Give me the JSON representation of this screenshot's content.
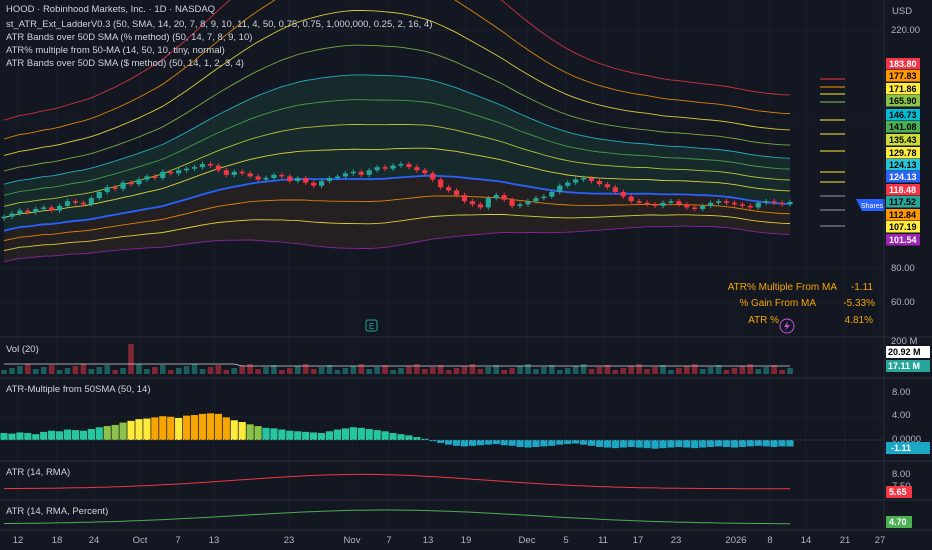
{
  "header": {
    "title": "HOOD · Robinhood Markets, Inc. · 1D · NASDAQ",
    "indicators": [
      "st_ATR_Ext_LadderV0.3 (50, SMA, 14, 20, 7, 8, 9, 10, 11, 4, 50, 0.75, 0.75, 1,000,000, 0.25, 2, 16, 4)",
      "ATR Bands over 50D SMA (% method) (50, 14, 7, 8, 9, 10)",
      "ATR% multiple from 50-MA (14, 50, 10, tiny, normal)",
      "ATR Bands over 50D SMA ($ method) (50, 14, 1, 2, 3, 4)"
    ]
  },
  "currency": "USD",
  "colors": {
    "background": "#131722",
    "grid": "#1e222d",
    "up": "#26a69a",
    "down": "#ef5350",
    "sma": "#2962ff"
  },
  "table": {
    "rows": [
      {
        "label": "ATR% Multiple From MA",
        "value": "-1.11"
      },
      {
        "label": "% Gain From MA",
        "value": "-5.33%"
      },
      {
        "label": "ATR %",
        "value": "4.81%"
      }
    ]
  },
  "price_labels": [
    {
      "text": "183.80",
      "bg": "#f23645",
      "fg": "#ffffff"
    },
    {
      "text": "177.83",
      "bg": "#ff9800",
      "fg": "#000000"
    },
    {
      "text": "171.86",
      "bg": "#ffeb3b",
      "fg": "#000000"
    },
    {
      "text": "165.90",
      "bg": "#8bc34a",
      "fg": "#000000"
    },
    {
      "text": "146.73",
      "bg": "#00bcd4",
      "fg": "#000000"
    },
    {
      "text": "141.08",
      "bg": "#4caf50",
      "fg": "#000000"
    },
    {
      "text": "135.43",
      "bg": "#cddc39",
      "fg": "#000000"
    },
    {
      "text": "129.78",
      "bg": "#ffeb3b",
      "fg": "#000000"
    },
    {
      "text": "124.13",
      "bg": "#26c6da",
      "fg": "#000000"
    },
    {
      "text": "124.13",
      "bg": "#2962ff",
      "fg": "#ffffff"
    },
    {
      "text": "118.48",
      "bg": "#f23645",
      "fg": "#ffffff"
    },
    {
      "text": "117.52",
      "bg": "#26a69a",
      "fg": "#000000"
    },
    {
      "text": "112.84",
      "bg": "#ff9800",
      "fg": "#000000"
    },
    {
      "text": "107.19",
      "bg": "#ffeb3b",
      "fg": "#000000"
    },
    {
      "text": "101.54",
      "bg": "#9c27b0",
      "fg": "#ffffff"
    }
  ],
  "shares_tag": "Shares",
  "earnings_tag": "E",
  "volume": {
    "title": "Vol (20)",
    "axis_label": "200 M",
    "values": [
      "20.92 M",
      "17.11 M"
    ]
  },
  "atr_multiple": {
    "title": "ATR-Multiple from 50SMA (50, 14)",
    "value": "-1.11"
  },
  "atr_rma": {
    "title": "ATR (14, RMA)",
    "value": "5.65"
  },
  "atr_pct": {
    "title": "ATR (14, RMA, Percent)",
    "value": "4.70"
  },
  "chart_data": {
    "type": "line",
    "price_axis": {
      "ticks": [
        220,
        80,
        60
      ],
      "tick_labels": [
        "220.00",
        "80.00",
        "60.00"
      ],
      "ohlc_close": [
        108,
        110,
        112,
        111,
        113,
        114,
        112,
        115,
        118,
        117,
        116,
        120,
        124,
        127,
        126,
        130,
        129,
        132,
        134,
        133,
        137,
        136,
        138,
        139,
        140,
        142,
        141,
        138,
        135,
        137,
        136,
        134,
        132,
        133,
        135,
        134,
        131,
        133,
        130,
        128,
        131,
        133,
        134,
        136,
        137,
        135,
        138,
        140,
        139,
        141,
        142,
        140,
        138,
        136,
        132,
        127,
        125,
        122,
        118,
        116,
        114,
        120,
        122,
        119,
        115,
        116,
        118,
        120,
        121,
        124,
        128,
        130,
        132,
        133,
        131,
        129,
        127,
        124,
        121,
        118,
        117,
        116,
        115,
        117,
        118,
        116,
        114,
        113,
        115,
        117,
        118,
        117,
        116,
        115,
        114,
        117,
        118,
        117,
        116,
        117.52
      ]
    },
    "volume_panel": {
      "axis_ticks": [
        "200 M"
      ],
      "last_values": [
        20.92,
        17.11
      ]
    },
    "atr_multiple_panel": {
      "ticks": [
        8,
        4,
        0
      ],
      "tick_labels": [
        "8.00",
        "4.00",
        "0.0000"
      ],
      "values": [
        1.2,
        1.1,
        1.3,
        1.2,
        1.0,
        1.4,
        1.6,
        1.5,
        1.8,
        1.7,
        1.6,
        1.9,
        2.2,
        2.4,
        2.6,
        3.0,
        3.3,
        3.6,
        3.7,
        3.9,
        4.1,
        4.0,
        3.8,
        4.2,
        4.3,
        4.5,
        4.6,
        4.5,
        3.9,
        3.4,
        3.1,
        2.7,
        2.4,
        2.1,
        2.0,
        1.8,
        1.6,
        1.5,
        1.4,
        1.3,
        1.2,
        1.5,
        1.8,
        2.0,
        2.2,
        2.1,
        1.9,
        1.7,
        1.5,
        1.2,
        1.0,
        0.8,
        0.5,
        0.2,
        -0.2,
        -0.5,
        -0.8,
        -1.0,
        -1.1,
        -1.0,
        -0.9,
        -0.8,
        -0.7,
        -0.9,
        -1.0,
        -1.2,
        -1.3,
        -1.2,
        -1.1,
        -1.0,
        -0.8,
        -0.7,
        -0.6,
        -0.8,
        -1.0,
        -1.2,
        -1.3,
        -1.4,
        -1.3,
        -1.2,
        -1.3,
        -1.4,
        -1.5,
        -1.4,
        -1.3,
        -1.2,
        -1.3,
        -1.4,
        -1.3,
        -1.2,
        -1.1,
        -1.2,
        -1.3,
        -1.2,
        -1.1,
        -1.0,
        -1.1,
        -1.2,
        -1.1,
        -1.11
      ],
      "last": -1.11
    },
    "atr_rma_panel": {
      "ticks": [
        8,
        7.5
      ],
      "tick_labels": [
        "8.00",
        "7.50"
      ],
      "last": 5.65
    },
    "atr_pct_panel": {
      "last": 4.7
    },
    "x_axis": {
      "tick_labels": [
        "12",
        "18",
        "24",
        "Oct",
        "7",
        "13",
        "23",
        "Nov",
        "7",
        "13",
        "19",
        "Dec",
        "5",
        "11",
        "17",
        "23",
        "2026",
        "8",
        "14",
        "21",
        "27"
      ]
    }
  }
}
